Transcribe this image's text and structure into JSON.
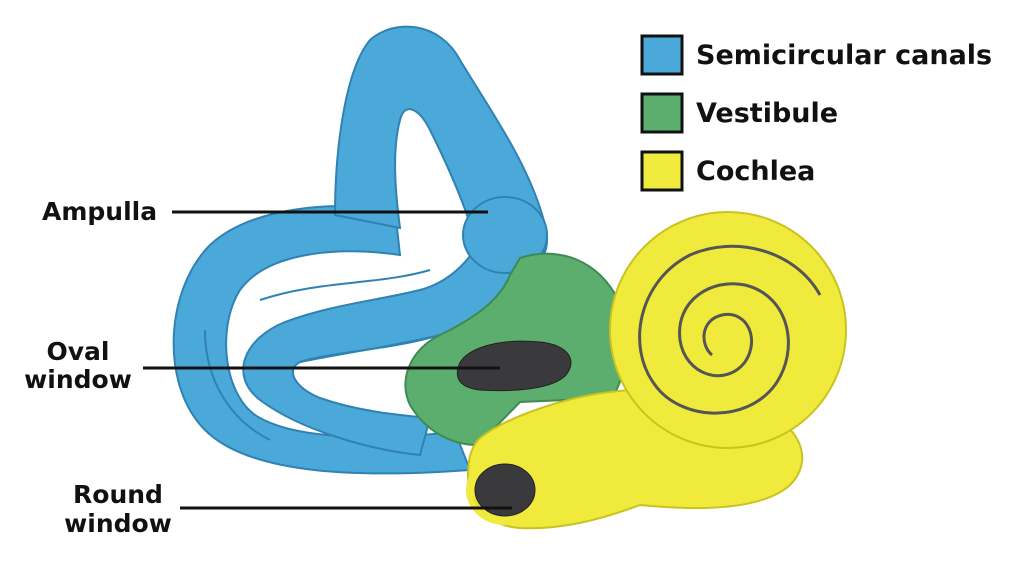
{
  "colors": {
    "semicircular": "#4aa9d8",
    "semicircular_dark": "#2f82b3",
    "vestibule": "#5cae6e",
    "vestibule_dark": "#3f8a52",
    "cochlea": "#f0ea3c",
    "cochlea_dark": "#c9c21f",
    "window_dark": "#3a3a3c",
    "text": "#111111"
  },
  "legend": [
    {
      "label": "Semicircular canals",
      "color": "#4aa9d8",
      "icon": "blue-swatch"
    },
    {
      "label": "Vestibule",
      "color": "#5cae6e",
      "icon": "green-swatch"
    },
    {
      "label": "Cochlea",
      "color": "#f0ea3c",
      "icon": "yellow-swatch"
    }
  ],
  "annotations": {
    "ampulla": {
      "lines": [
        "Ampulla"
      ]
    },
    "oval_window": {
      "lines": [
        "Oval",
        "window"
      ]
    },
    "round_window": {
      "lines": [
        "Round",
        "window"
      ]
    }
  }
}
